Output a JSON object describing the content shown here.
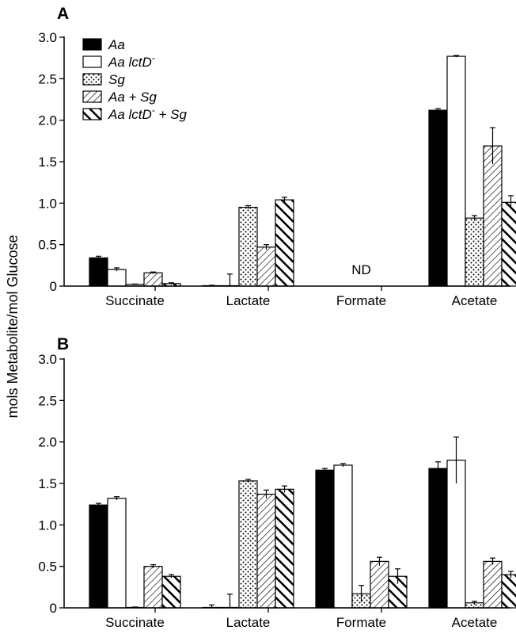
{
  "ylabel": "mols Metabolite/mol Glucose",
  "legend": {
    "entries": [
      {
        "label": "Aa",
        "sup": "",
        "tail": "",
        "pattern": "solid"
      },
      {
        "label": "Aa lctD",
        "sup": "-",
        "tail": "",
        "pattern": "white"
      },
      {
        "label": "Sg",
        "sup": "",
        "tail": "",
        "pattern": "dots"
      },
      {
        "label": "Aa + Sg",
        "sup": "",
        "tail": "",
        "pattern": "hatch-thin"
      },
      {
        "label": "Aa lctD",
        "sup": "-",
        "tail": " + Sg",
        "pattern": "hatch-thick"
      }
    ]
  },
  "chart_data": [
    {
      "type": "bar",
      "panel": "A",
      "categories": [
        "Succinate",
        "Lactate",
        "Formate",
        "Acetate"
      ],
      "ylim": [
        0,
        3.0
      ],
      "yticks": [
        "0",
        "0.5",
        "1.0",
        "1.5",
        "2.0",
        "2.5",
        "3.0"
      ],
      "annotations": [
        {
          "category": "Formate",
          "text": "ND"
        }
      ],
      "series": [
        {
          "name": "Aa",
          "values": [
            0.34,
            0.005,
            0,
            2.12
          ],
          "errors": [
            0.02,
            0.005,
            0,
            0.02
          ]
        },
        {
          "name": "Aa lctD- ",
          "values": [
            0.2,
            0.005,
            0,
            2.77
          ],
          "errors": [
            0.02,
            0.14,
            0,
            0.01
          ]
        },
        {
          "name": "Sg",
          "values": [
            0.02,
            0.95,
            0,
            0.82
          ],
          "errors": [
            0.005,
            0.02,
            0,
            0.03
          ]
        },
        {
          "name": "Aa + Sg",
          "values": [
            0.16,
            0.47,
            0,
            1.69
          ],
          "errors": [
            0.01,
            0.03,
            0,
            0.22
          ]
        },
        {
          "name": "Aa lctD- + Sg",
          "values": [
            0.03,
            1.04,
            0,
            1.01
          ],
          "errors": [
            0.01,
            0.03,
            0,
            0.08
          ]
        }
      ]
    },
    {
      "type": "bar",
      "panel": "B",
      "categories": [
        "Succinate",
        "Lactate",
        "Formate",
        "Acetate"
      ],
      "ylim": [
        0,
        3.0
      ],
      "yticks": [
        "0",
        "0.5",
        "1.0",
        "1.5",
        "2.0",
        "2.5",
        "3.0"
      ],
      "annotations": [],
      "series": [
        {
          "name": "Aa",
          "values": [
            1.24,
            0.005,
            1.66,
            1.68
          ],
          "errors": [
            0.02,
            0.03,
            0.02,
            0.08
          ]
        },
        {
          "name": "Aa lctD- ",
          "values": [
            1.32,
            0.005,
            1.72,
            1.78
          ],
          "errors": [
            0.02,
            0.16,
            0.02,
            0.28
          ]
        },
        {
          "name": "Sg",
          "values": [
            0.005,
            1.53,
            0.17,
            0.06
          ],
          "errors": [
            0.005,
            0.02,
            0.1,
            0.02
          ]
        },
        {
          "name": "Aa + Sg",
          "values": [
            0.5,
            1.37,
            0.56,
            0.56
          ],
          "errors": [
            0.02,
            0.05,
            0.05,
            0.04
          ]
        },
        {
          "name": "Aa lctD- + Sg",
          "values": [
            0.38,
            1.43,
            0.38,
            0.4
          ],
          "errors": [
            0.02,
            0.04,
            0.09,
            0.04
          ]
        }
      ]
    }
  ]
}
